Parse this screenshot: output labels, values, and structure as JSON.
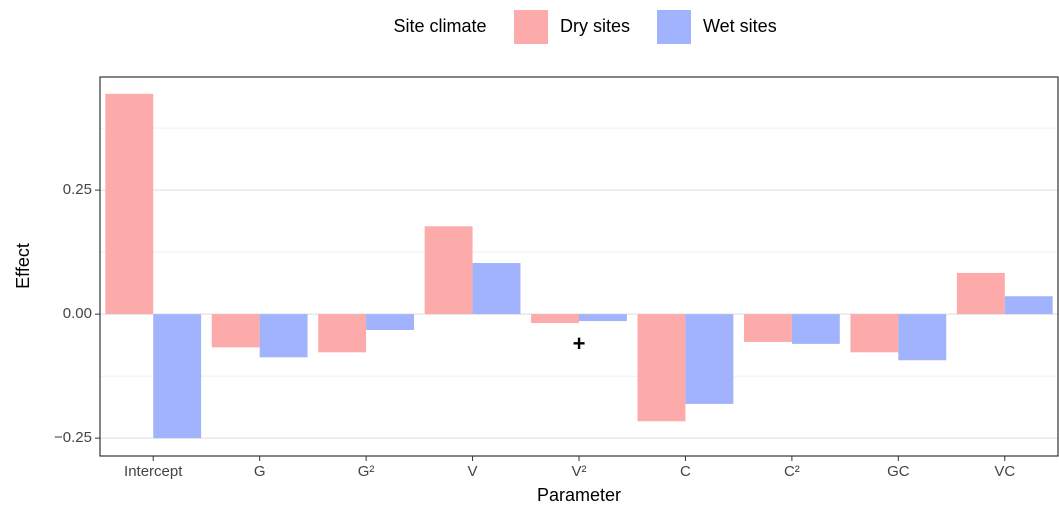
{
  "chart_data": {
    "type": "bar",
    "legend_title": "Site climate",
    "x_label": "Parameter",
    "y_label": "Effect",
    "categories": [
      "Intercept",
      "G",
      "G²",
      "V",
      "V²",
      "C",
      "C²",
      "GC",
      "VC"
    ],
    "series": [
      {
        "name": "Dry sites",
        "color": "#fdaaaa",
        "values": [
          0.444,
          -0.067,
          -0.077,
          0.177,
          -0.018,
          -0.216,
          -0.056,
          -0.077,
          0.083
        ]
      },
      {
        "name": "Wet sites",
        "color": "#a1b3fc",
        "values": [
          -0.25,
          -0.087,
          -0.032,
          0.103,
          -0.014,
          -0.181,
          -0.06,
          -0.093,
          0.036
        ]
      }
    ],
    "ylim": [
      -0.286,
      0.478
    ],
    "yticks": [
      {
        "value": -0.25,
        "label": "−0.25"
      },
      {
        "value": 0,
        "label": "0.00"
      },
      {
        "value": 0.25,
        "label": "0.25"
      }
    ],
    "grid": true,
    "minor_grid": true,
    "legend_position": "top",
    "annotation": {
      "text": "+",
      "category": "V²"
    }
  }
}
